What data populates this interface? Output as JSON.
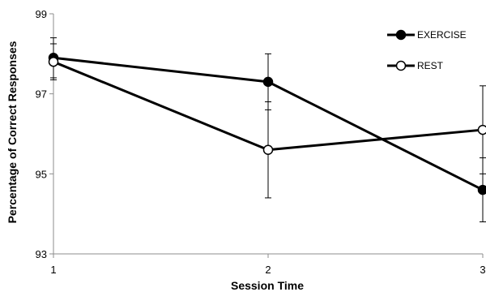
{
  "chart_data": {
    "type": "line",
    "title": "",
    "xlabel": "Session Time",
    "ylabel": "Percentage of  Correct Responses",
    "x": [
      1,
      2,
      3
    ],
    "x_ticks": [
      "1",
      "2",
      "3"
    ],
    "y_ticks": [
      "93",
      "95",
      "97",
      "99"
    ],
    "xlim": [
      1,
      3
    ],
    "ylim": [
      93,
      99
    ],
    "grid": false,
    "legend_position": "top-right",
    "series": [
      {
        "name": "EXERCISE",
        "marker": "filled-circle",
        "color": "#000000",
        "values": [
          97.9,
          97.3,
          94.6
        ],
        "error": [
          0.5,
          0.7,
          0.8
        ]
      },
      {
        "name": "REST",
        "marker": "open-circle",
        "color": "#000000",
        "values": [
          97.8,
          95.6,
          96.1
        ],
        "error": [
          0.45,
          1.2,
          1.1
        ]
      }
    ]
  }
}
